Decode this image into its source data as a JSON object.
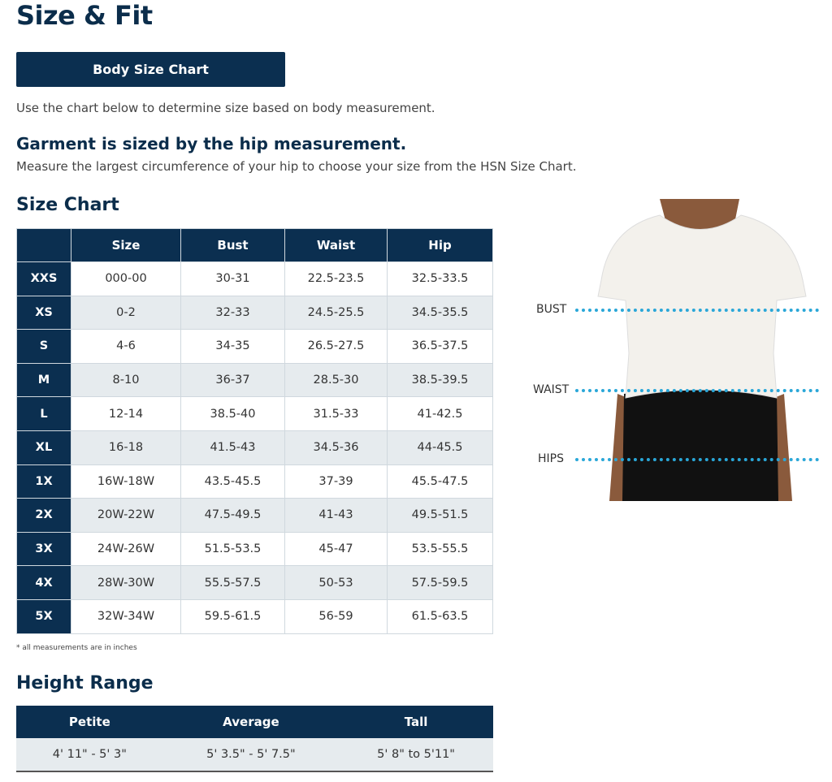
{
  "title": "Size & Fit",
  "button_label": "Body Size Chart",
  "intro": "Use the chart below to determine size based on body measurement.",
  "garment_heading": "Garment is sized by the hip measurement.",
  "garment_text": "Measure the largest circumference of your hip to choose your size from the HSN Size Chart.",
  "size_chart": {
    "heading": "Size Chart",
    "columns": [
      "",
      "Size",
      "Bust",
      "Waist",
      "Hip"
    ],
    "rows": [
      [
        "XXS",
        "000-00",
        "30-31",
        "22.5-23.5",
        "32.5-33.5"
      ],
      [
        "XS",
        "0-2",
        "32-33",
        "24.5-25.5",
        "34.5-35.5"
      ],
      [
        "S",
        "4-6",
        "34-35",
        "26.5-27.5",
        "36.5-37.5"
      ],
      [
        "M",
        "8-10",
        "36-37",
        "28.5-30",
        "38.5-39.5"
      ],
      [
        "L",
        "12-14",
        "38.5-40",
        "31.5-33",
        "41-42.5"
      ],
      [
        "XL",
        "16-18",
        "41.5-43",
        "34.5-36",
        "44-45.5"
      ],
      [
        "1X",
        "16W-18W",
        "43.5-45.5",
        "37-39",
        "45.5-47.5"
      ],
      [
        "2X",
        "20W-22W",
        "47.5-49.5",
        "41-43",
        "49.5-51.5"
      ],
      [
        "3X",
        "24W-26W",
        "51.5-53.5",
        "45-47",
        "53.5-55.5"
      ],
      [
        "4X",
        "28W-30W",
        "55.5-57.5",
        "50-53",
        "57.5-59.5"
      ],
      [
        "5X",
        "32W-34W",
        "59.5-61.5",
        "56-59",
        "61.5-63.5"
      ]
    ],
    "note": "* all measurements are in inches"
  },
  "height_range": {
    "heading": "Height Range",
    "columns": [
      "Petite",
      "Average",
      "Tall"
    ],
    "values": [
      "4' 11\" - 5' 3\"",
      "5' 3.5\" - 5' 7.5\"",
      "5' 8\" to 5'11\""
    ]
  },
  "figure": {
    "labels": [
      "BUST",
      "WAIST",
      "HIPS"
    ]
  },
  "colors": {
    "navy": "#0b2f50",
    "alt_row": "#e6ebee",
    "measure_line": "#2aa7d8"
  }
}
